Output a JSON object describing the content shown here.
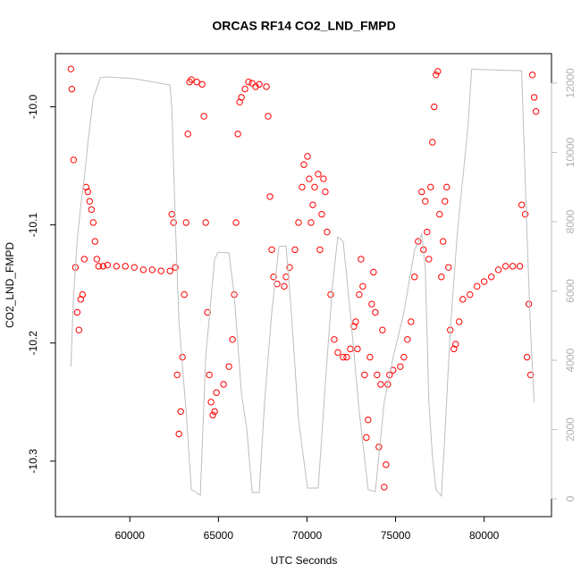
{
  "chart_data": {
    "type": "scatter",
    "title": "ORCAS RF14 CO2_LND_FMPD",
    "xlabel": "UTC Seconds",
    "ylabel": "CO2_LND_FMPD",
    "xlim": [
      55800,
      83800
    ],
    "ylim": [
      -10.347,
      -9.955
    ],
    "y2lim": [
      -516,
      12852
    ],
    "xticks": [
      60000,
      65000,
      70000,
      75000,
      80000
    ],
    "yticks": [
      {
        "value": -10,
        "label": "-10.0"
      },
      -10.1,
      -10.2,
      -10.3
    ],
    "y2ticks": [
      0,
      2000,
      4000,
      6000,
      8000,
      10000,
      12000
    ],
    "grid": false,
    "series": [
      {
        "mark": "circle",
        "color": "#ff0000",
        "x": [
          56675,
          56725,
          56826,
          56927,
          57028,
          57128,
          57229,
          57330,
          57431,
          57531,
          57632,
          57733,
          57834,
          57934,
          58035,
          58136,
          58237,
          58489,
          58741,
          59244,
          59748,
          60252,
          60756,
          61260,
          61763,
          62267,
          62368,
          62469,
          62569,
          62670,
          62771,
          62872,
          62972,
          63073,
          63174,
          63275,
          63375,
          63476,
          63779,
          64081,
          64182,
          64282,
          64383,
          64484,
          64585,
          64685,
          64786,
          64887,
          65290,
          65592,
          65794,
          65895,
          65995,
          66096,
          66197,
          66298,
          66499,
          66701,
          66902,
          67104,
          67305,
          67708,
          67809,
          67910,
          68010,
          68111,
          68313,
          68716,
          68817,
          69018,
          69320,
          69522,
          69723,
          69824,
          70026,
          70126,
          70227,
          70328,
          70429,
          70630,
          70731,
          70832,
          70932,
          71033,
          71134,
          71336,
          71537,
          71739,
          72041,
          72242,
          72444,
          72645,
          72746,
          72847,
          72948,
          73048,
          73149,
          73250,
          73351,
          73451,
          73552,
          73653,
          73754,
          73855,
          73955,
          74056,
          74157,
          74258,
          74358,
          74459,
          74560,
          74661,
          74862,
          75265,
          75467,
          75668,
          75870,
          76071,
          76273,
          76474,
          76575,
          76676,
          76777,
          76877,
          76978,
          77079,
          77180,
          77280,
          77381,
          77482,
          77583,
          77683,
          77784,
          77885,
          77986,
          78086,
          78288,
          78389,
          78590,
          78792,
          79195,
          79598,
          80001,
          80404,
          80807,
          81210,
          81613,
          82016,
          82117,
          82318,
          82419,
          82520,
          82621,
          82722,
          82822,
          82923
        ],
        "values": [
          -9.968,
          -9.985,
          -10.045,
          -10.136,
          -10.174,
          -10.189,
          -10.163,
          -10.159,
          -10.129,
          -10.068,
          -10.072,
          -10.08,
          -10.087,
          -10.098,
          -10.114,
          -10.129,
          -10.135,
          -10.135,
          -10.134,
          -10.135,
          -10.135,
          -10.136,
          -10.138,
          -10.138,
          -10.139,
          -10.139,
          -10.091,
          -10.098,
          -10.136,
          -10.227,
          -10.277,
          -10.258,
          -10.212,
          -10.159,
          -10.098,
          -10.023,
          -9.979,
          -9.977,
          -9.979,
          -9.981,
          -10.008,
          -10.098,
          -10.174,
          -10.227,
          -10.25,
          -10.261,
          -10.258,
          -10.242,
          -10.235,
          -10.22,
          -10.197,
          -10.159,
          -10.098,
          -10.023,
          -9.996,
          -9.992,
          -9.985,
          -9.979,
          -9.98,
          -9.983,
          -9.981,
          -9.983,
          -10.008,
          -10.076,
          -10.121,
          -10.144,
          -10.15,
          -10.152,
          -10.144,
          -10.136,
          -10.121,
          -10.098,
          -10.068,
          -10.049,
          -10.042,
          -10.061,
          -10.098,
          -10.083,
          -10.068,
          -10.057,
          -10.121,
          -10.091,
          -10.061,
          -10.072,
          -10.106,
          -10.159,
          -10.197,
          -10.208,
          -10.212,
          -10.212,
          -10.205,
          -10.186,
          -10.182,
          -10.205,
          -10.159,
          -10.129,
          -10.152,
          -10.227,
          -10.28,
          -10.265,
          -10.212,
          -10.167,
          -10.14,
          -10.174,
          -10.227,
          -10.288,
          -10.235,
          -10.189,
          -10.322,
          -10.303,
          -10.235,
          -10.227,
          -10.223,
          -10.22,
          -10.212,
          -10.197,
          -10.182,
          -10.144,
          -10.114,
          -10.072,
          -10.121,
          -10.08,
          -10.106,
          -10.129,
          -10.068,
          -10.03,
          -10,
          -9.973,
          -9.97,
          -10.091,
          -10.144,
          -10.114,
          -10.08,
          -10.068,
          -10.136,
          -10.189,
          -10.205,
          -10.201,
          -10.182,
          -10.163,
          -10.159,
          -10.152,
          -10.148,
          -10.144,
          -10.138,
          -10.135,
          -10.135,
          -10.135,
          -10.083,
          -10.091,
          -10.212,
          -10.167,
          -10.227,
          -9.973,
          -9.992,
          -10.004
        ]
      },
      {
        "mark": "line",
        "color": "#bebebe",
        "axis": "y2",
        "x": [
          56675,
          56826,
          57028,
          57229,
          57431,
          57632,
          57934,
          58338,
          58741,
          60252,
          62267,
          62368,
          62569,
          62771,
          63174,
          63476,
          63678,
          63980,
          64282,
          64786,
          64988,
          65592,
          65895,
          66298,
          66600,
          66902,
          67305,
          67607,
          68010,
          68413,
          68817,
          69119,
          69522,
          70026,
          70630,
          71033,
          71437,
          71739,
          72041,
          72444,
          72948,
          73451,
          73855,
          74358,
          74862,
          75467,
          76071,
          76474,
          76676,
          76877,
          77079,
          77280,
          77583,
          77784,
          78086,
          78489,
          78792,
          79094,
          79296,
          79900,
          82117,
          82419,
          82621,
          82822
        ],
        "values": [
          3820,
          5880,
          7430,
          8460,
          9240,
          10270,
          11560,
          12160,
          12180,
          12130,
          11950,
          11300,
          7950,
          5110,
          2520,
          260,
          210,
          100,
          4080,
          6920,
          7120,
          7100,
          5880,
          3050,
          2010,
          180,
          180,
          2790,
          5370,
          7280,
          7300,
          5370,
          2270,
          310,
          310,
          3300,
          6140,
          7560,
          7430,
          5370,
          2520,
          260,
          210,
          2790,
          4080,
          5370,
          7180,
          7640,
          6660,
          2790,
          1240,
          260,
          80,
          1880,
          4850,
          7690,
          9240,
          10790,
          12410,
          12390,
          12360,
          7640,
          4850,
          2790
        ]
      }
    ]
  }
}
